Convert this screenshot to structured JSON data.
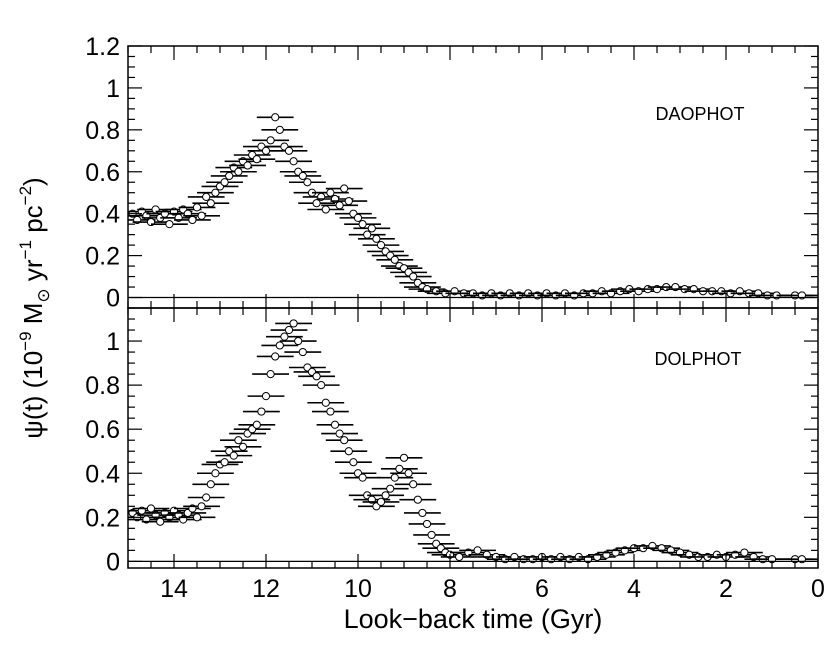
{
  "figure": {
    "ylabel_html_parts": {
      "psi": "ψ(t) (10",
      "exp9": "−9",
      "msun": " M",
      "sun_symbol": "⊙",
      "yr": " yr",
      "exp1": "−1",
      "pc": " pc",
      "exp2": "−2",
      "close": ")"
    },
    "xlabel": "Look−back time (Gyr)"
  },
  "chart_data": [
    {
      "type": "scatter",
      "panel": "top",
      "annotation": "DAOPHOT",
      "xlim": [
        15,
        0
      ],
      "ylim": [
        -0.05,
        1.2
      ],
      "x_reversed": true,
      "x_ticks": [
        14,
        12,
        10,
        8,
        6,
        4,
        2,
        0
      ],
      "x_tick_labels_shown": false,
      "y_ticks": [
        0,
        0.2,
        0.4,
        0.6,
        0.8,
        1,
        1.2
      ],
      "y_tick_labels": [
        "0",
        "0.2",
        "0.4",
        "0.6",
        "0.8",
        "1",
        "1.2"
      ],
      "marker": "open-circle",
      "error_bars": "horizontal",
      "xerr": 0.4,
      "points": [
        [
          14.9,
          0.4
        ],
        [
          14.8,
          0.37
        ],
        [
          14.7,
          0.41
        ],
        [
          14.6,
          0.39
        ],
        [
          14.5,
          0.36
        ],
        [
          14.4,
          0.42
        ],
        [
          14.3,
          0.38
        ],
        [
          14.2,
          0.4
        ],
        [
          14.1,
          0.35
        ],
        [
          14.0,
          0.41
        ],
        [
          13.9,
          0.38
        ],
        [
          13.8,
          0.42
        ],
        [
          13.7,
          0.4
        ],
        [
          13.6,
          0.37
        ],
        [
          13.5,
          0.43
        ],
        [
          13.4,
          0.39
        ],
        [
          13.3,
          0.48
        ],
        [
          13.2,
          0.45
        ],
        [
          13.1,
          0.5
        ],
        [
          13.0,
          0.53
        ],
        [
          12.9,
          0.55
        ],
        [
          12.8,
          0.58
        ],
        [
          12.7,
          0.62
        ],
        [
          12.6,
          0.6
        ],
        [
          12.5,
          0.65
        ],
        [
          12.4,
          0.63
        ],
        [
          12.3,
          0.68
        ],
        [
          12.2,
          0.66
        ],
        [
          12.1,
          0.72
        ],
        [
          12.0,
          0.7
        ],
        [
          11.9,
          0.75
        ],
        [
          11.8,
          0.86
        ],
        [
          11.7,
          0.8
        ],
        [
          11.6,
          0.72
        ],
        [
          11.5,
          0.7
        ],
        [
          11.4,
          0.65
        ],
        [
          11.3,
          0.6
        ],
        [
          11.2,
          0.58
        ],
        [
          11.1,
          0.55
        ],
        [
          11.0,
          0.5
        ],
        [
          10.9,
          0.45
        ],
        [
          10.8,
          0.48
        ],
        [
          10.7,
          0.42
        ],
        [
          10.6,
          0.5
        ],
        [
          10.5,
          0.47
        ],
        [
          10.4,
          0.44
        ],
        [
          10.3,
          0.52
        ],
        [
          10.2,
          0.46
        ],
        [
          10.1,
          0.4
        ],
        [
          10.0,
          0.38
        ],
        [
          9.9,
          0.35
        ],
        [
          9.8,
          0.3
        ],
        [
          9.7,
          0.33
        ],
        [
          9.6,
          0.28
        ],
        [
          9.5,
          0.25
        ],
        [
          9.4,
          0.22
        ],
        [
          9.3,
          0.2
        ],
        [
          9.2,
          0.18
        ],
        [
          9.1,
          0.15
        ],
        [
          9.0,
          0.14
        ],
        [
          8.9,
          0.12
        ],
        [
          8.8,
          0.1
        ],
        [
          8.7,
          0.07
        ],
        [
          8.6,
          0.05
        ],
        [
          8.5,
          0.04
        ],
        [
          8.3,
          0.03
        ],
        [
          8.1,
          0.02
        ],
        [
          7.9,
          0.03
        ],
        [
          7.7,
          0.02
        ],
        [
          7.5,
          0.02
        ],
        [
          7.3,
          0.01
        ],
        [
          7.1,
          0.02
        ],
        [
          6.9,
          0.01
        ],
        [
          6.7,
          0.02
        ],
        [
          6.5,
          0.01
        ],
        [
          6.3,
          0.02
        ],
        [
          6.1,
          0.01
        ],
        [
          5.9,
          0.02
        ],
        [
          5.7,
          0.01
        ],
        [
          5.5,
          0.02
        ],
        [
          5.3,
          0.01
        ],
        [
          5.1,
          0.02
        ],
        [
          4.9,
          0.02
        ],
        [
          4.7,
          0.03
        ],
        [
          4.5,
          0.02
        ],
        [
          4.3,
          0.03
        ],
        [
          4.1,
          0.04
        ],
        [
          3.9,
          0.03
        ],
        [
          3.7,
          0.04
        ],
        [
          3.5,
          0.04
        ],
        [
          3.3,
          0.05
        ],
        [
          3.1,
          0.05
        ],
        [
          2.9,
          0.04
        ],
        [
          2.7,
          0.04
        ],
        [
          2.5,
          0.03
        ],
        [
          2.3,
          0.03
        ],
        [
          2.1,
          0.03
        ],
        [
          1.9,
          0.02
        ],
        [
          1.7,
          0.03
        ],
        [
          1.5,
          0.02
        ],
        [
          1.3,
          0.02
        ],
        [
          1.1,
          0.01
        ],
        [
          0.9,
          0.01
        ],
        [
          0.5,
          0.01
        ],
        [
          0.35,
          0.01
        ]
      ]
    },
    {
      "type": "scatter",
      "panel": "bottom",
      "annotation": "DOLPHOT",
      "xlabel": "Look−back time (Gyr)",
      "xlim": [
        15,
        0
      ],
      "ylim": [
        -0.03,
        1.15
      ],
      "x_reversed": true,
      "x_ticks": [
        14,
        12,
        10,
        8,
        6,
        4,
        2,
        0
      ],
      "x_tick_labels": [
        "14",
        "12",
        "10",
        "8",
        "6",
        "4",
        "2",
        "0"
      ],
      "y_ticks": [
        0,
        0.2,
        0.4,
        0.6,
        0.8,
        1
      ],
      "y_tick_labels": [
        "0",
        "0.2",
        "0.4",
        "0.6",
        "0.8",
        "1"
      ],
      "marker": "open-circle",
      "error_bars": "horizontal",
      "xerr": 0.4,
      "points": [
        [
          14.9,
          0.22
        ],
        [
          14.8,
          0.2
        ],
        [
          14.7,
          0.23
        ],
        [
          14.6,
          0.19
        ],
        [
          14.5,
          0.24
        ],
        [
          14.4,
          0.21
        ],
        [
          14.3,
          0.18
        ],
        [
          14.2,
          0.22
        ],
        [
          14.1,
          0.2
        ],
        [
          14.0,
          0.23
        ],
        [
          13.9,
          0.21
        ],
        [
          13.8,
          0.19
        ],
        [
          13.7,
          0.22
        ],
        [
          13.6,
          0.24
        ],
        [
          13.5,
          0.2
        ],
        [
          13.4,
          0.25
        ],
        [
          13.3,
          0.29
        ],
        [
          13.2,
          0.35
        ],
        [
          13.1,
          0.4
        ],
        [
          13.0,
          0.44
        ],
        [
          12.9,
          0.45
        ],
        [
          12.8,
          0.5
        ],
        [
          12.7,
          0.48
        ],
        [
          12.6,
          0.55
        ],
        [
          12.5,
          0.52
        ],
        [
          12.4,
          0.58
        ],
        [
          12.3,
          0.6
        ],
        [
          12.2,
          0.62
        ],
        [
          12.1,
          0.68
        ],
        [
          12.0,
          0.75
        ],
        [
          11.9,
          0.85
        ],
        [
          11.8,
          0.93
        ],
        [
          11.7,
          0.98
        ],
        [
          11.6,
          1.02
        ],
        [
          11.5,
          1.05
        ],
        [
          11.4,
          1.08
        ],
        [
          11.3,
          1.0
        ],
        [
          11.2,
          0.95
        ],
        [
          11.1,
          0.88
        ],
        [
          11.0,
          0.86
        ],
        [
          10.9,
          0.84
        ],
        [
          10.8,
          0.8
        ],
        [
          10.7,
          0.72
        ],
        [
          10.6,
          0.68
        ],
        [
          10.5,
          0.62
        ],
        [
          10.4,
          0.58
        ],
        [
          10.3,
          0.55
        ],
        [
          10.2,
          0.5
        ],
        [
          10.1,
          0.45
        ],
        [
          10.0,
          0.4
        ],
        [
          9.9,
          0.38
        ],
        [
          9.8,
          0.3
        ],
        [
          9.7,
          0.28
        ],
        [
          9.6,
          0.25
        ],
        [
          9.5,
          0.27
        ],
        [
          9.4,
          0.3
        ],
        [
          9.3,
          0.33
        ],
        [
          9.2,
          0.38
        ],
        [
          9.1,
          0.42
        ],
        [
          9.0,
          0.47
        ],
        [
          8.9,
          0.4
        ],
        [
          8.8,
          0.35
        ],
        [
          8.7,
          0.28
        ],
        [
          8.6,
          0.22
        ],
        [
          8.5,
          0.17
        ],
        [
          8.4,
          0.12
        ],
        [
          8.3,
          0.08
        ],
        [
          8.2,
          0.06
        ],
        [
          8.1,
          0.04
        ],
        [
          8.0,
          0.03
        ],
        [
          7.8,
          0.02
        ],
        [
          7.6,
          0.04
        ],
        [
          7.4,
          0.05
        ],
        [
          7.2,
          0.03
        ],
        [
          7.0,
          0.02
        ],
        [
          6.8,
          0.01
        ],
        [
          6.6,
          0.02
        ],
        [
          6.4,
          0.01
        ],
        [
          6.2,
          0.01
        ],
        [
          6.0,
          0.02
        ],
        [
          5.8,
          0.01
        ],
        [
          5.6,
          0.02
        ],
        [
          5.4,
          0.01
        ],
        [
          5.2,
          0.02
        ],
        [
          5.0,
          0.01
        ],
        [
          4.8,
          0.02
        ],
        [
          4.6,
          0.03
        ],
        [
          4.4,
          0.04
        ],
        [
          4.2,
          0.05
        ],
        [
          4.0,
          0.06
        ],
        [
          3.8,
          0.06
        ],
        [
          3.6,
          0.07
        ],
        [
          3.4,
          0.06
        ],
        [
          3.2,
          0.05
        ],
        [
          3.0,
          0.04
        ],
        [
          2.8,
          0.03
        ],
        [
          2.6,
          0.02
        ],
        [
          2.4,
          0.02
        ],
        [
          2.2,
          0.03
        ],
        [
          2.0,
          0.02
        ],
        [
          1.8,
          0.03
        ],
        [
          1.6,
          0.04
        ],
        [
          1.4,
          0.02
        ],
        [
          1.2,
          0.01
        ],
        [
          1.0,
          0.01
        ],
        [
          0.5,
          0.01
        ],
        [
          0.35,
          0.01
        ]
      ]
    }
  ]
}
